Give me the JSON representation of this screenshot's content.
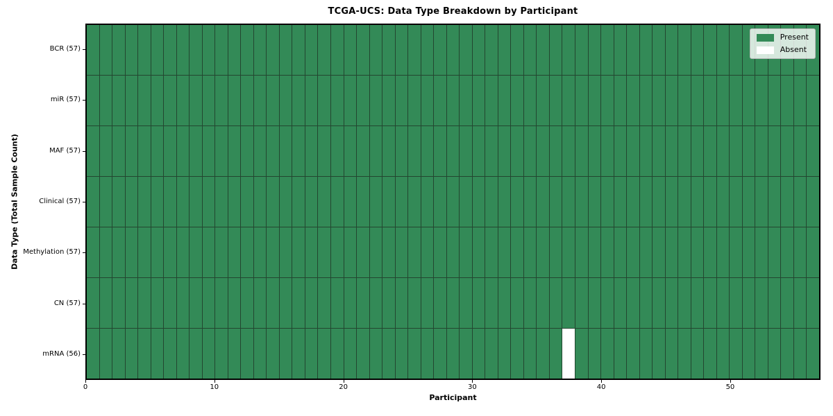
{
  "chart_data": {
    "type": "heatmap",
    "title": "TCGA-UCS: Data Type Breakdown by Participant",
    "xlabel": "Participant",
    "ylabel": "Data Type (Total Sample Count)",
    "n_participants": 57,
    "xlim": [
      0,
      57
    ],
    "x_ticks": [
      0,
      10,
      20,
      30,
      40,
      50
    ],
    "grid": "cell-borders",
    "rows": [
      {
        "label": "BCR (57)",
        "data_type": "BCR",
        "present_count": 57,
        "absent_participants": []
      },
      {
        "label": "miR (57)",
        "data_type": "miR",
        "present_count": 57,
        "absent_participants": []
      },
      {
        "label": "MAF (57)",
        "data_type": "MAF",
        "present_count": 57,
        "absent_participants": []
      },
      {
        "label": "Clinical (57)",
        "data_type": "Clinical",
        "present_count": 57,
        "absent_participants": []
      },
      {
        "label": "Methylation (57)",
        "data_type": "Methylation",
        "present_count": 57,
        "absent_participants": []
      },
      {
        "label": "CN (57)",
        "data_type": "CN",
        "present_count": 57,
        "absent_participants": []
      },
      {
        "label": "mRNA (56)",
        "data_type": "mRNA",
        "present_count": 56,
        "absent_participants": [
          37
        ]
      }
    ],
    "colors": {
      "present": "#338a57",
      "absent": "#ffffff",
      "cell_border": "#234630",
      "frame": "#000000",
      "background": "#ffffff"
    },
    "legend": {
      "position": "upper right",
      "entries": [
        {
          "label": "Present",
          "color": "#338a57"
        },
        {
          "label": "Absent",
          "color": "#ffffff"
        }
      ]
    }
  }
}
